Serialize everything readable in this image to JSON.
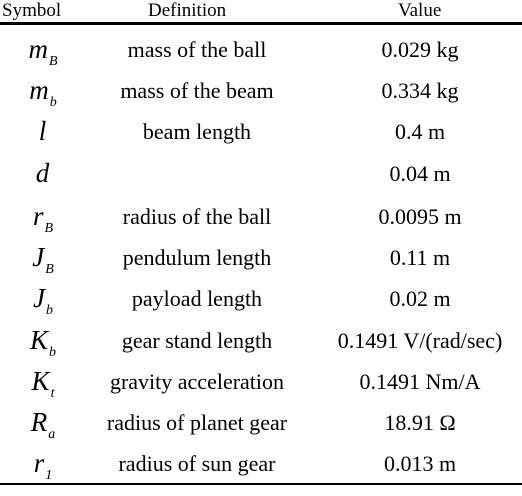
{
  "header": {
    "symbol": "Symbol",
    "definition": "Definition",
    "value": "Value"
  },
  "rows": [
    {
      "sym": "m",
      "sub": "B",
      "definition": "mass of the ball",
      "value": "0.029 kg"
    },
    {
      "sym": "m",
      "sub": "b",
      "definition": "mass of the beam",
      "value": "0.334 kg"
    },
    {
      "sym": "l",
      "sub": "",
      "definition": "beam length",
      "value": "0.4 m"
    },
    {
      "sym": "d",
      "sub": "",
      "definition": "",
      "value": "0.04 m"
    },
    {
      "sym": "r",
      "sub": "B",
      "definition": "radius of the ball",
      "value": "0.0095 m"
    },
    {
      "sym": "J",
      "sub": "B",
      "definition": "pendulum length",
      "value": "0.11 m"
    },
    {
      "sym": "J",
      "sub": "b",
      "definition": "payload length",
      "value": "0.02 m"
    },
    {
      "sym": "K",
      "sub": "b",
      "definition": "gear stand length",
      "value": "0.1491 V/(rad/sec)"
    },
    {
      "sym": "K",
      "sub": "t",
      "definition": "gravity acceleration",
      "value": "0.1491 Nm/A"
    },
    {
      "sym": "R",
      "sub": "a",
      "definition": "radius of planet gear",
      "value": "18.91 Ω"
    },
    {
      "sym": "r",
      "sub": "1",
      "definition": "radius of sun gear",
      "value": "0.013 m"
    }
  ]
}
